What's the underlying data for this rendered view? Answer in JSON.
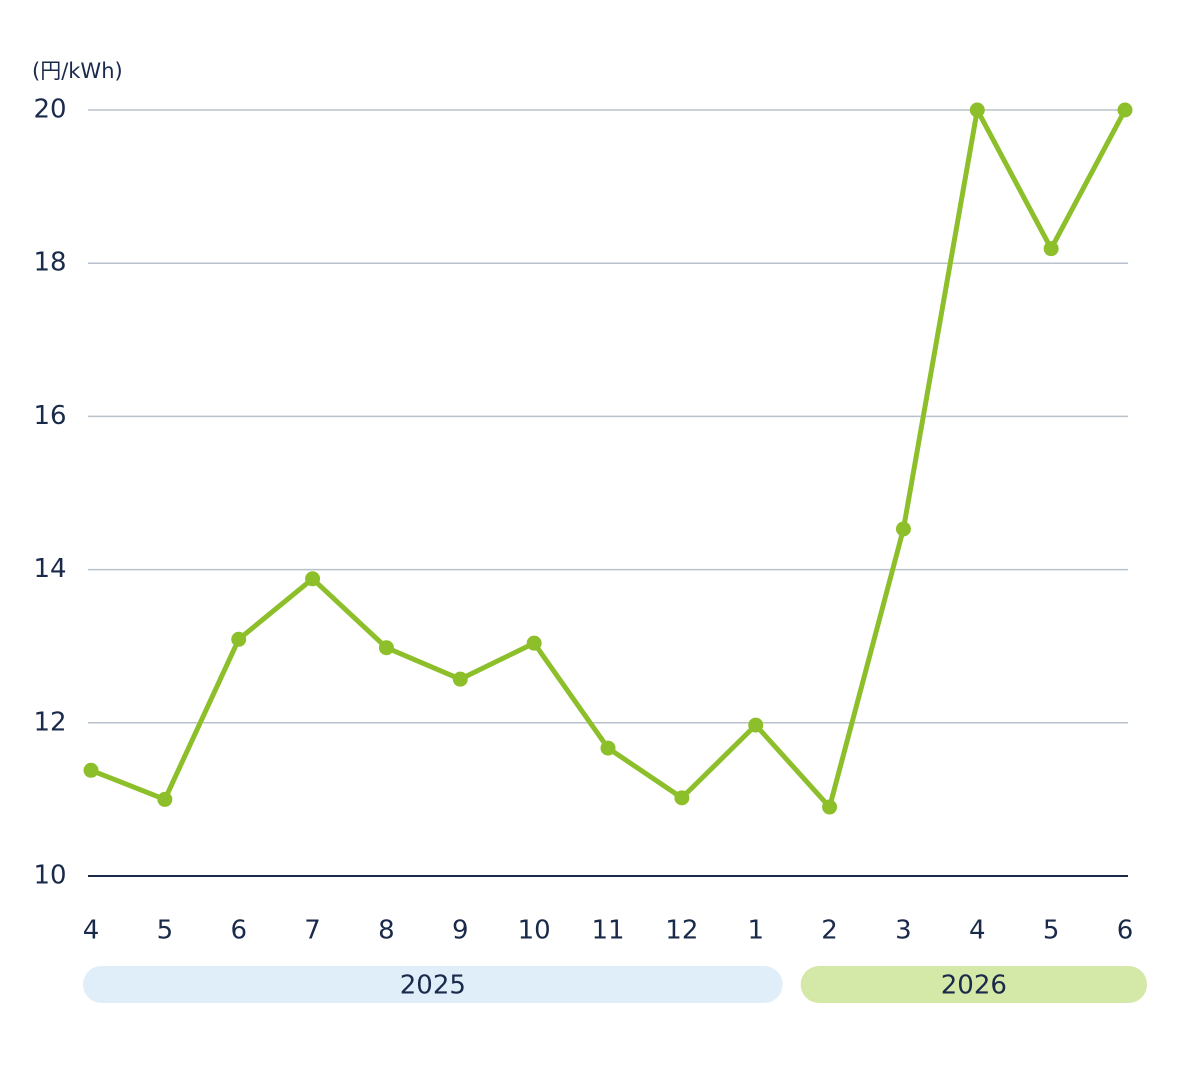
{
  "chart_data": {
    "type": "line",
    "y_label": "(円/kWh)",
    "categories": [
      "4",
      "5",
      "6",
      "7",
      "8",
      "9",
      "10",
      "11",
      "12",
      "1",
      "2",
      "3",
      "4",
      "5",
      "6"
    ],
    "year_groups": [
      {
        "label": "2025",
        "count": 10,
        "color": "#e0eefa"
      },
      {
        "label": "2026",
        "count": 5,
        "color": "#d4e8a8"
      }
    ],
    "values": [
      11.38,
      11.0,
      13.09,
      13.88,
      12.98,
      12.57,
      13.04,
      11.67,
      11.02,
      11.97,
      10.9,
      14.53,
      20.0,
      18.19,
      20.0
    ],
    "color": "#8dbf2a",
    "ylim": [
      10,
      20
    ],
    "yticks": [
      10,
      12,
      14,
      16,
      18,
      20
    ],
    "grid": true
  }
}
